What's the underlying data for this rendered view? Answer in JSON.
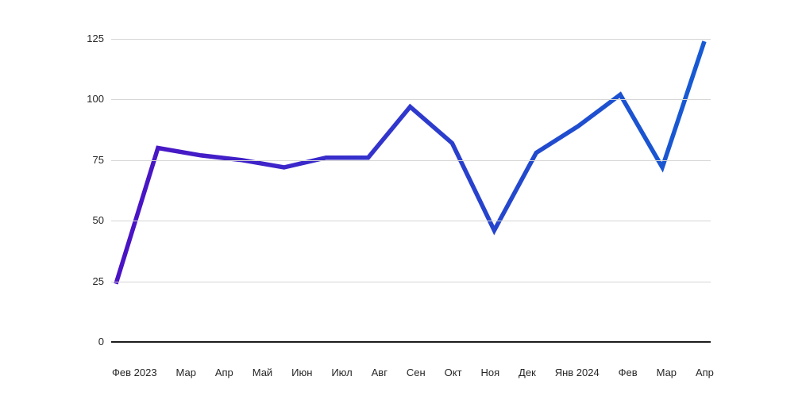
{
  "chart_data": {
    "type": "line",
    "categories": [
      "Фев 2023",
      "Мар",
      "Апр",
      "Май",
      "Июн",
      "Июл",
      "Авг",
      "Сен",
      "Окт",
      "Ноя",
      "Дек",
      "Янв 2024",
      "Фев",
      "Мар",
      "Апр"
    ],
    "values": [
      24,
      80,
      77,
      75,
      72,
      76,
      76,
      97,
      82,
      46,
      78,
      89,
      102,
      72,
      124
    ],
    "title": "",
    "xlabel": "",
    "ylabel": "",
    "ylim": [
      0,
      125
    ],
    "yticks": [
      0,
      25,
      50,
      75,
      100,
      125
    ],
    "grid": true,
    "legend_position": "none",
    "line_gradient": [
      "#4b12c4",
      "#3a2acb",
      "#2447cd",
      "#175ad3"
    ]
  },
  "colors": {
    "background": "#ffffff",
    "gridline": "#d6d6d6",
    "axis_line": "#1c1c1c",
    "tick_label": "#262626"
  }
}
